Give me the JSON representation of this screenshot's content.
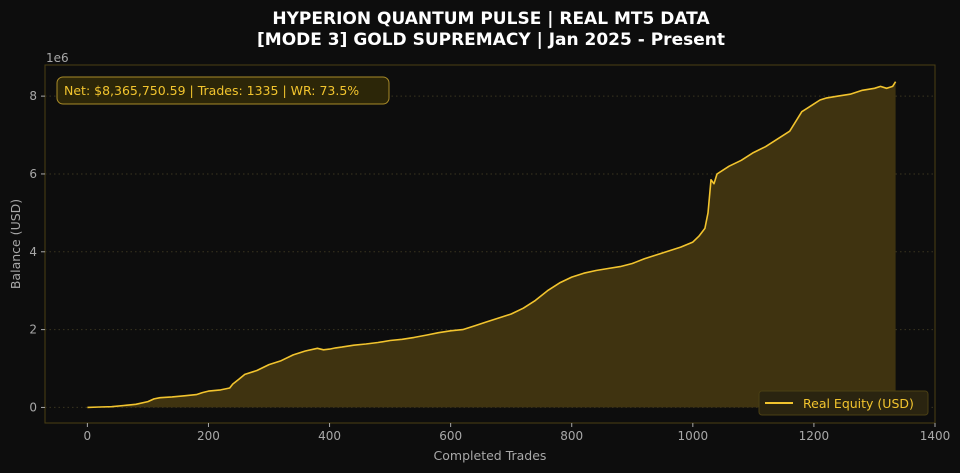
{
  "chart_data": {
    "type": "area",
    "title_line1": "HYPERION QUANTUM PULSE | REAL MT5 DATA",
    "title_line2": "[MODE 3] GOLD SUPREMACY | Jan 2025 - Present",
    "xlabel": "Completed Trades",
    "ylabel": "Balance (USD)",
    "y_offset_label": "1e6",
    "xlim": [
      -70,
      1400
    ],
    "ylim": [
      -0.4,
      8.8
    ],
    "x_ticks": [
      0,
      200,
      400,
      600,
      800,
      1000,
      1200,
      1400
    ],
    "x_tick_labels": [
      "0",
      "200",
      "400",
      "600",
      "800",
      "1000",
      "1200",
      "1400"
    ],
    "y_ticks": [
      0,
      2,
      4,
      6,
      8
    ],
    "y_tick_labels": [
      "0",
      "2",
      "4",
      "6",
      "8"
    ],
    "grid": "horizontal dotted",
    "legend_position": "bottom-right",
    "stats_annotation": "Net: $8,365,750.59 | Trades: 1335 | WR: 73.5%",
    "series": [
      {
        "name": "Real Equity (USD)",
        "color": "#f2c42e",
        "x": [
          0,
          20,
          40,
          60,
          80,
          100,
          110,
          120,
          140,
          160,
          180,
          190,
          200,
          220,
          235,
          240,
          250,
          260,
          280,
          300,
          320,
          340,
          360,
          380,
          390,
          400,
          410,
          420,
          440,
          460,
          480,
          500,
          520,
          540,
          560,
          580,
          600,
          620,
          640,
          660,
          680,
          700,
          720,
          740,
          760,
          780,
          800,
          820,
          840,
          860,
          880,
          900,
          920,
          940,
          960,
          980,
          1000,
          1010,
          1020,
          1025,
          1030,
          1035,
          1040,
          1050,
          1060,
          1080,
          1100,
          1120,
          1140,
          1160,
          1180,
          1190,
          1200,
          1210,
          1220,
          1240,
          1260,
          1280,
          1300,
          1310,
          1320,
          1330,
          1335
        ],
        "y": [
          0.0,
          0.01,
          0.02,
          0.05,
          0.08,
          0.15,
          0.22,
          0.25,
          0.27,
          0.3,
          0.33,
          0.38,
          0.42,
          0.45,
          0.5,
          0.6,
          0.72,
          0.85,
          0.95,
          1.1,
          1.2,
          1.35,
          1.45,
          1.52,
          1.48,
          1.5,
          1.53,
          1.55,
          1.6,
          1.63,
          1.67,
          1.72,
          1.75,
          1.8,
          1.86,
          1.92,
          1.97,
          2.0,
          2.1,
          2.2,
          2.3,
          2.4,
          2.55,
          2.75,
          3.0,
          3.2,
          3.35,
          3.45,
          3.52,
          3.57,
          3.62,
          3.7,
          3.82,
          3.92,
          4.02,
          4.12,
          4.25,
          4.4,
          4.6,
          5.0,
          5.85,
          5.75,
          6.0,
          6.1,
          6.2,
          6.35,
          6.55,
          6.7,
          6.9,
          7.1,
          7.6,
          7.7,
          7.8,
          7.9,
          7.95,
          8.0,
          8.05,
          8.15,
          8.2,
          8.25,
          8.2,
          8.25,
          8.37
        ]
      }
    ]
  },
  "colors": {
    "background": "#0d0d0d",
    "plot_background": "#0d0d0d",
    "spine": "#4a3f14",
    "accent": "#f2c42e",
    "fill": "#3f3310",
    "grid": "#3a3520"
  }
}
